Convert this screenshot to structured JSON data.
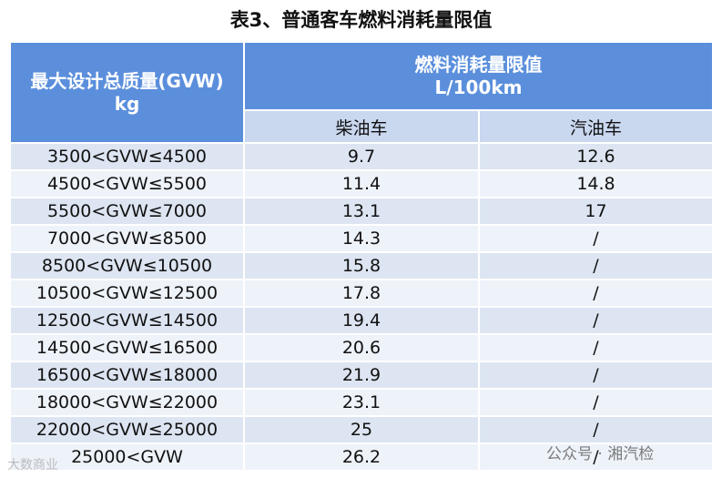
{
  "header": {
    "title": "表3、普通客车燃料消耗量限值"
  },
  "table": {
    "head_mass": [
      "最大设计总质量(GVW)",
      "kg"
    ],
    "head_limit": [
      "燃料消耗量限值",
      "L/100km"
    ],
    "sub_headers": [
      "柴油车",
      "汽油车"
    ],
    "rows": [
      [
        "3500<GVW≤4500",
        "9.7",
        "12.6"
      ],
      [
        "4500<GVW≤5500",
        "11.4",
        "14.8"
      ],
      [
        "5500<GVW≤7000",
        "13.1",
        "17"
      ],
      [
        "7000<GVW≤8500",
        "14.3",
        "/"
      ],
      [
        "8500<GVW≤10500",
        "15.8",
        "/"
      ],
      [
        "10500<GVW≤12500",
        "17.8",
        "/"
      ],
      [
        "12500<GVW≤14500",
        "19.4",
        "/"
      ],
      [
        "14500<GVW≤16500",
        "20.6",
        "/"
      ],
      [
        "16500<GVW≤18000",
        "21.9",
        "/"
      ],
      [
        "18000<GVW≤22000",
        "23.1",
        "/"
      ],
      [
        "22000<GVW≤25000",
        "25",
        "/"
      ],
      [
        "25000<GVW",
        "26.2",
        "/"
      ]
    ]
  },
  "watermarks": {
    "left": "大数商业",
    "right": "公众号 · 湘汽检"
  }
}
